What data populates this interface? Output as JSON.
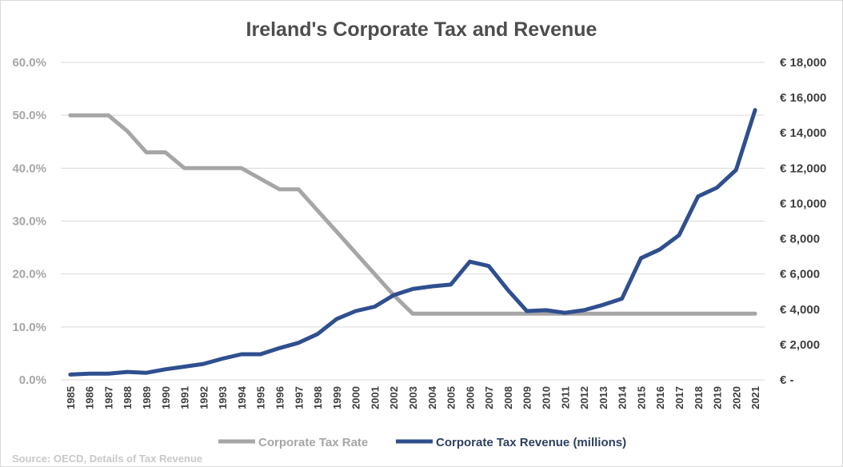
{
  "chart_data": {
    "type": "line",
    "title": "Ireland's Corporate Tax and Revenue",
    "source": "Source: OECD, Details of Tax Revenue",
    "grid": true,
    "legend_position": "bottom",
    "x": [
      "1985",
      "1986",
      "1987",
      "1988",
      "1989",
      "1990",
      "1991",
      "1992",
      "1993",
      "1994",
      "1995",
      "1996",
      "1997",
      "1998",
      "1999",
      "2000",
      "2001",
      "2002",
      "2003",
      "2004",
      "2005",
      "2006",
      "2007",
      "2008",
      "2009",
      "2010",
      "2011",
      "2012",
      "2013",
      "2014",
      "2015",
      "2016",
      "2017",
      "2018",
      "2019",
      "2020",
      "2021"
    ],
    "y_left": {
      "ylim": [
        0,
        60
      ],
      "ticks": [
        0,
        10,
        20,
        30,
        40,
        50,
        60
      ],
      "tick_labels": [
        "0.0%",
        "10.0%",
        "20.0%",
        "30.0%",
        "40.0%",
        "50.0%",
        "60.0%"
      ]
    },
    "y_right": {
      "ylim": [
        0,
        18000
      ],
      "ticks": [
        0,
        2000,
        4000,
        6000,
        8000,
        10000,
        12000,
        14000,
        16000,
        18000
      ],
      "tick_labels": [
        "€ -",
        "€ 2,000",
        "€ 4,000",
        "€ 6,000",
        "€ 8,000",
        "€ 10,000",
        "€ 12,000",
        "€ 14,000",
        "€ 16,000",
        "€ 18,000"
      ]
    },
    "series": [
      {
        "name": "Corporate Tax Rate",
        "axis": "left",
        "color": "#a6a6a6",
        "values": [
          50,
          50,
          50,
          47,
          43,
          43,
          40,
          40,
          40,
          40,
          38,
          36,
          36,
          32,
          28,
          24,
          20,
          16,
          12.5,
          12.5,
          12.5,
          12.5,
          12.5,
          12.5,
          12.5,
          12.5,
          12.5,
          12.5,
          12.5,
          12.5,
          12.5,
          12.5,
          12.5,
          12.5,
          12.5,
          12.5,
          12.5
        ]
      },
      {
        "name": "Corporate Tax Revenue (millions)",
        "axis": "right",
        "color": "#2f4f8f",
        "values": [
          300,
          350,
          350,
          450,
          400,
          600,
          750,
          900,
          1200,
          1450,
          1450,
          1800,
          2100,
          2600,
          3450,
          3900,
          4150,
          4800,
          5150,
          5300,
          5400,
          6700,
          6450,
          5100,
          3900,
          3950,
          3800,
          3950,
          4250,
          4600,
          6900,
          7400,
          8200,
          10400,
          10900,
          11900,
          15300
        ]
      }
    ]
  }
}
